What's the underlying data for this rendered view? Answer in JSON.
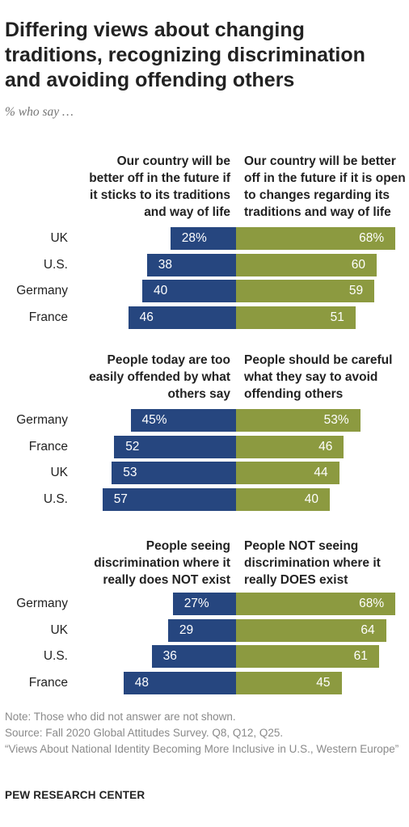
{
  "title": "Differing views about changing traditions, recognizing discrimination and avoiding offending others",
  "subtitle": "% who say …",
  "colors": {
    "left_bar": "#26467f",
    "right_bar": "#8c9a40"
  },
  "chart_data": [
    {
      "type": "bar",
      "orientation": "diverging-horizontal",
      "left_label": "Our country will be better off in the future if it sticks to its traditions and way of life",
      "right_label": "Our country will be better off in the future if it is open to changes regarding its traditions and way of life",
      "rows": [
        {
          "country": "UK",
          "left": 28,
          "right": 68,
          "left_text": "28%",
          "right_text": "68%"
        },
        {
          "country": "U.S.",
          "left": 38,
          "right": 60,
          "left_text": "38",
          "right_text": "60"
        },
        {
          "country": "Germany",
          "left": 40,
          "right": 59,
          "left_text": "40",
          "right_text": "59"
        },
        {
          "country": "France",
          "left": 46,
          "right": 51,
          "left_text": "46",
          "right_text": "51"
        }
      ]
    },
    {
      "type": "bar",
      "orientation": "diverging-horizontal",
      "left_label": "People today are too easily offended by what others say",
      "right_label": "People should be careful what they say to avoid offending others",
      "rows": [
        {
          "country": "Germany",
          "left": 45,
          "right": 53,
          "left_text": "45%",
          "right_text": "53%"
        },
        {
          "country": "France",
          "left": 52,
          "right": 46,
          "left_text": "52",
          "right_text": "46"
        },
        {
          "country": "UK",
          "left": 53,
          "right": 44,
          "left_text": "53",
          "right_text": "44"
        },
        {
          "country": "U.S.",
          "left": 57,
          "right": 40,
          "left_text": "57",
          "right_text": "40"
        }
      ]
    },
    {
      "type": "bar",
      "orientation": "diverging-horizontal",
      "left_label": "People seeing discrimination where it really does NOT exist",
      "right_label": "People NOT seeing discrimination where it really DOES exist",
      "rows": [
        {
          "country": "Germany",
          "left": 27,
          "right": 68,
          "left_text": "27%",
          "right_text": "68%"
        },
        {
          "country": "UK",
          "left": 29,
          "right": 64,
          "left_text": "29",
          "right_text": "64"
        },
        {
          "country": "U.S.",
          "left": 36,
          "right": 61,
          "left_text": "36",
          "right_text": "61"
        },
        {
          "country": "France",
          "left": 48,
          "right": 45,
          "left_text": "48",
          "right_text": "45"
        }
      ]
    }
  ],
  "notes": [
    "Note: Those who did not answer are not shown.",
    "Source: Fall 2020 Global Attitudes Survey. Q8, Q12, Q25.",
    "“Views About National Identity Becoming More Inclusive in U.S., Western Europe”"
  ],
  "brand": "PEW RESEARCH CENTER"
}
